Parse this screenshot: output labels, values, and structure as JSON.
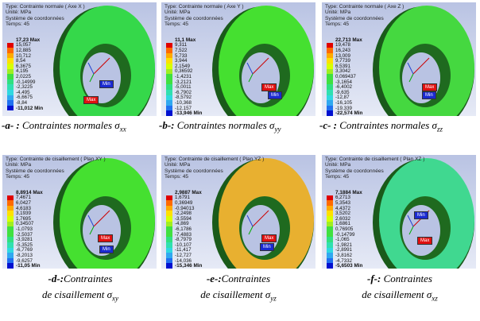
{
  "legend_colors": [
    "#e00000",
    "#ff6a00",
    "#ffaa00",
    "#ffe000",
    "#d8ff00",
    "#a0ee20",
    "#40e040",
    "#30e080",
    "#30e0b0",
    "#30d8e0",
    "#30a8f0",
    "#2070f0",
    "#0010d0"
  ],
  "panels": [
    {
      "id": "a",
      "type": "Type: Contrainte normale ( Axe X )",
      "unit": "Unité: MPa",
      "system": "Système de coordonnées",
      "time": "Temps: 45",
      "values": [
        "17,23 Max",
        "15,057",
        "12,885",
        "10,712",
        "8,54",
        "6,3675",
        "4,195",
        "2,0225",
        "-0,14999",
        "-2,3225",
        "-4,495",
        "-6,6675",
        "-8,84",
        "-11,012 Min"
      ],
      "max_tag": "Max",
      "min_tag": "Min",
      "disk_color": "#35d84a"
    },
    {
      "id": "b",
      "type": "Type: Contrainte normale ( Axe Y )",
      "unit": "Unité: MPa",
      "system": "Système de coordonnées",
      "time": "Temps: 45",
      "values": [
        "11,1 Max",
        "9,311",
        "7,522",
        "5,733",
        "3,944",
        "2,1549",
        "0,36592",
        "-1,4231",
        "-3,2121",
        "-5,0011",
        "-6,7902",
        "-8,5792",
        "-10,368",
        "-12,157",
        "-13,946 Min"
      ],
      "max_tag": "Max",
      "min_tag": "Min",
      "disk_color": "#45e030"
    },
    {
      "id": "c",
      "type": "Type: Contrainte normale ( Axe Z )",
      "unit": "Unité: MPa",
      "system": "Système de coordonnées",
      "time": "Temps: 45",
      "values": [
        "22,713 Max",
        "19,478",
        "16,243",
        "13,009",
        "9,7739",
        "6,5391",
        "3,3042",
        "0,069437",
        "-3,1654",
        "-6,4002",
        "-9,635",
        "-12,87",
        "-16,105",
        "-19,339",
        "-22,574 Min"
      ],
      "max_tag": "Max",
      "min_tag": "Min",
      "disk_color": "#45d840"
    },
    {
      "id": "d",
      "type": "Type: Contrainte de cisaillement ( Plan XY )",
      "unit": "Unité: MPa",
      "system": "Système de coordonnées",
      "time": "Temps: 45",
      "values": [
        "8,8914 Max",
        "7,4671",
        "6,0427",
        "4,6183",
        "3,1939",
        "1,7695",
        "0,34507",
        "-1,0793",
        "-2,5037",
        "-3,9281",
        "-5,3525",
        "-6,7769",
        "-8,2013",
        "-9,6257",
        "-11,05 Min"
      ],
      "max_tag": "Max",
      "min_tag": "Min",
      "disk_color": "#45e030"
    },
    {
      "id": "e",
      "type": "Type: Contrainte de cisaillement ( Plan YZ )",
      "unit": "Unité: MPa",
      "system": "Système de coordonnées",
      "time": "Temps: 45",
      "values": [
        "2,9887 Max",
        "1,6791",
        "0,36949",
        "-0,94013",
        "-2,2498",
        "-3,5594",
        "-4,869",
        "-6,1786",
        "-7,4883",
        "-8,7979",
        "-10,107",
        "-11,417",
        "-12,727",
        "-14,036",
        "-15,346 Min"
      ],
      "max_tag": "Max",
      "min_tag": "Min",
      "disk_color": "#e8b030"
    },
    {
      "id": "f",
      "type": "Type: Contrainte de cisaillement ( Plan XZ )",
      "unit": "Unité: MPa",
      "system": "Système de coordonnées",
      "time": "Temps: 45",
      "values": [
        "7,1884 Max",
        "6,2713",
        "5,3543",
        "4,4372",
        "3,5202",
        "2,6032",
        "1,6861",
        "0,76905",
        "-0,14799",
        "-1,065",
        "-1,9821",
        "-2,8991",
        "-3,8162",
        "-4,7332",
        "-5,6503 Min"
      ],
      "max_tag": "Max",
      "min_tag": "Min",
      "disk_color": "#40d890"
    }
  ],
  "captions": [
    {
      "letter": "-a- :",
      "text": " Contraintes normales σ",
      "sub": "xx"
    },
    {
      "letter": "-b-:",
      "text": " Contraintes normales σ",
      "sub": "yy"
    },
    {
      "letter": "-c- :",
      "text": " Contraintes normales σ",
      "sub": "zz"
    },
    {
      "letter": "-d-:",
      "text": "Contraintes",
      "line2": "de cisaillement σ",
      "sub": "xy"
    },
    {
      "letter": "-e-:",
      "text": "Contraintes",
      "line2": "de cisaillement σ",
      "sub": "yz"
    },
    {
      "letter": "-f-:",
      "text": " Contraintes",
      "line2": "de cisaillement  σ",
      "sub": "xz"
    }
  ]
}
